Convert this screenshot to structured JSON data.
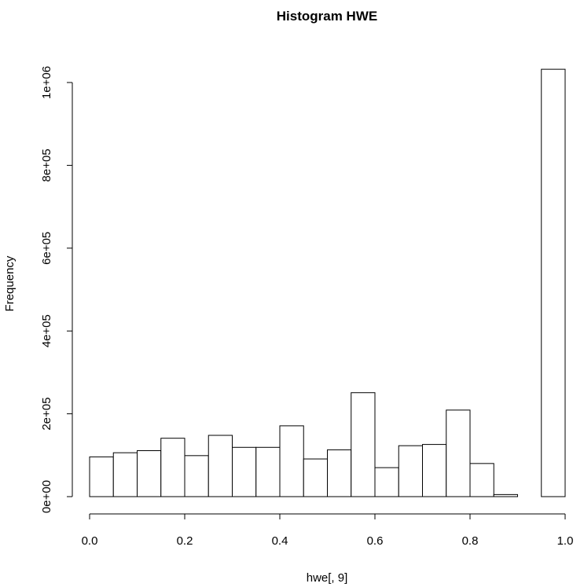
{
  "chart_data": {
    "type": "bar",
    "title": "Histogram HWE",
    "xlabel": "hwe[, 9]",
    "ylabel": "Frequency",
    "bin_width": 0.05,
    "bin_starts": [
      0.0,
      0.05,
      0.1,
      0.15,
      0.2,
      0.25,
      0.3,
      0.35,
      0.4,
      0.45,
      0.5,
      0.55,
      0.6,
      0.65,
      0.7,
      0.75,
      0.8,
      0.85,
      0.9,
      0.95
    ],
    "values": [
      96000,
      106000,
      111000,
      141000,
      99000,
      148000,
      119000,
      119000,
      171000,
      91000,
      113000,
      251000,
      70000,
      123000,
      126000,
      209000,
      80000,
      5000,
      0,
      1032000
    ],
    "xlim": [
      0,
      1
    ],
    "ylim": [
      0,
      1000000
    ],
    "x_ticks": [
      0.0,
      0.2,
      0.4,
      0.6,
      0.8,
      1.0
    ],
    "x_tick_labels": [
      "0.0",
      "0.2",
      "0.4",
      "0.6",
      "0.8",
      "1.0"
    ],
    "y_ticks": [
      0,
      200000,
      400000,
      600000,
      800000,
      1000000
    ],
    "y_tick_labels": [
      "0e+00",
      "2e+05",
      "4e+05",
      "6e+05",
      "8e+05",
      "1e+06"
    ],
    "grid": false,
    "bar_fill": "#ffffff",
    "bar_stroke": "#000000"
  }
}
